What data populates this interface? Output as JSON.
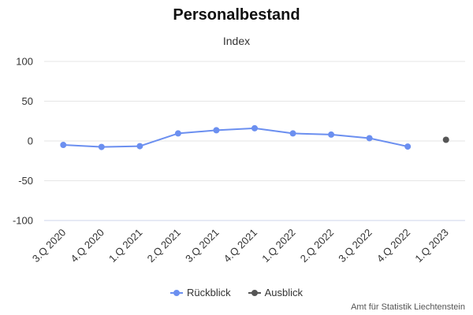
{
  "chart_data": {
    "type": "line",
    "title": "Personalbestand",
    "subtitle": "Index",
    "categories": [
      "3.Q 2020",
      "4.Q 2020",
      "1.Q 2021",
      "2.Q 2021",
      "3.Q 2021",
      "4.Q 2021",
      "1.Q 2022",
      "2.Q 2022",
      "3.Q 2022",
      "4.Q 2022",
      "1.Q 2023"
    ],
    "yticks": [
      100,
      50,
      0,
      -50,
      -100
    ],
    "ylim": [
      -100,
      100
    ],
    "grid": true,
    "legend_position": "bottom-center",
    "series": [
      {
        "name": "Rückblick",
        "color": "#6b8ff0",
        "values": [
          -5,
          -7.5,
          -6.5,
          9.5,
          13.5,
          16,
          9.5,
          8,
          3.5,
          -7,
          null
        ]
      },
      {
        "name": "Ausblick",
        "color": "#555555",
        "values": [
          null,
          null,
          null,
          null,
          null,
          null,
          null,
          null,
          null,
          null,
          1.5
        ]
      }
    ],
    "credits": "Amt für Statistik Liechtenstein"
  }
}
